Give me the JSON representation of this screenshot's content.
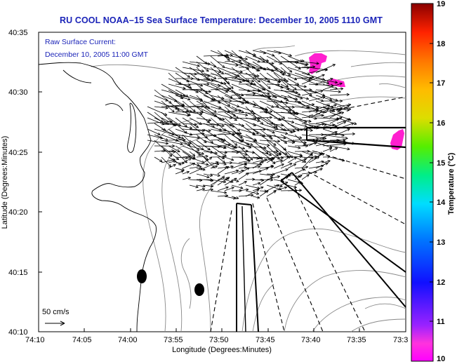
{
  "title": "RU COOL   NOAA–15  Sea Surface Temperature:  December 10, 2005 1110 GMT",
  "legend": {
    "line1": "Raw Surface Current:",
    "line2": "December 10, 2005 11:00 GMT",
    "scale_label": "50 cm/s"
  },
  "axes": {
    "xlabel": "Longitude (Degrees:Minutes)",
    "ylabel": "Latitude (Degrees:Minutes)",
    "x_ticks": [
      "74:10",
      "74:05",
      "74:00",
      "73:55",
      "73:50",
      "73:45",
      "73:40",
      "73:35",
      "73:3"
    ],
    "y_ticks": [
      "40:35",
      "40:30",
      "40:25",
      "40:20",
      "40:15",
      "40:10"
    ]
  },
  "colorbar": {
    "label": "Temperature (°C)",
    "ticks": [
      "19",
      "18",
      "17",
      "16",
      "15",
      "14",
      "13",
      "12",
      "11",
      "10"
    ],
    "range": [
      10,
      19
    ]
  },
  "colors": {
    "title": "#1b24b8",
    "sst_patch": "#ff1fcf"
  },
  "chart_data": {
    "type": "vector-map",
    "title": "RU COOL NOAA-15 Sea Surface Temperature: December 10, 2005 1110 GMT",
    "xlabel": "Longitude (Degrees:Minutes)",
    "ylabel": "Latitude (Degrees:Minutes)",
    "xlim": [
      "74:10",
      "73:30"
    ],
    "ylim": [
      "40:10",
      "40:35"
    ],
    "colorbar_range_c": [
      10,
      19
    ],
    "vector_scale": "50 cm/s",
    "sst_patches": [
      "pink patch near 73:42W 40:32N",
      "pink patch near 73:37W 40:30N",
      "pink patch near 73:30W 40:26N"
    ]
  }
}
